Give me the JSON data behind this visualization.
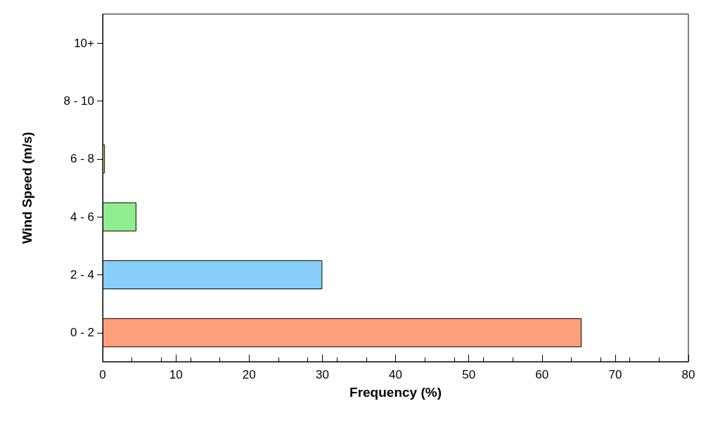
{
  "chart_data": {
    "type": "bar",
    "orientation": "horizontal",
    "xlabel": "Frequency (%)",
    "ylabel": "Wind Speed (m/s)",
    "categories": [
      "10+",
      "8 - 10",
      "6 - 8",
      "4 - 6",
      "2 - 4",
      "0 - 2"
    ],
    "values": [
      0,
      0,
      0.3,
      4.6,
      30,
      65.4
    ],
    "colors": [
      "#f4a460",
      "#d3d3d3",
      "#f0e68c",
      "#90ee90",
      "#87cefa",
      "#ffa07a"
    ],
    "xlim": [
      0,
      80
    ],
    "xticks": [
      0,
      10,
      20,
      30,
      40,
      50,
      60,
      70,
      80
    ]
  }
}
